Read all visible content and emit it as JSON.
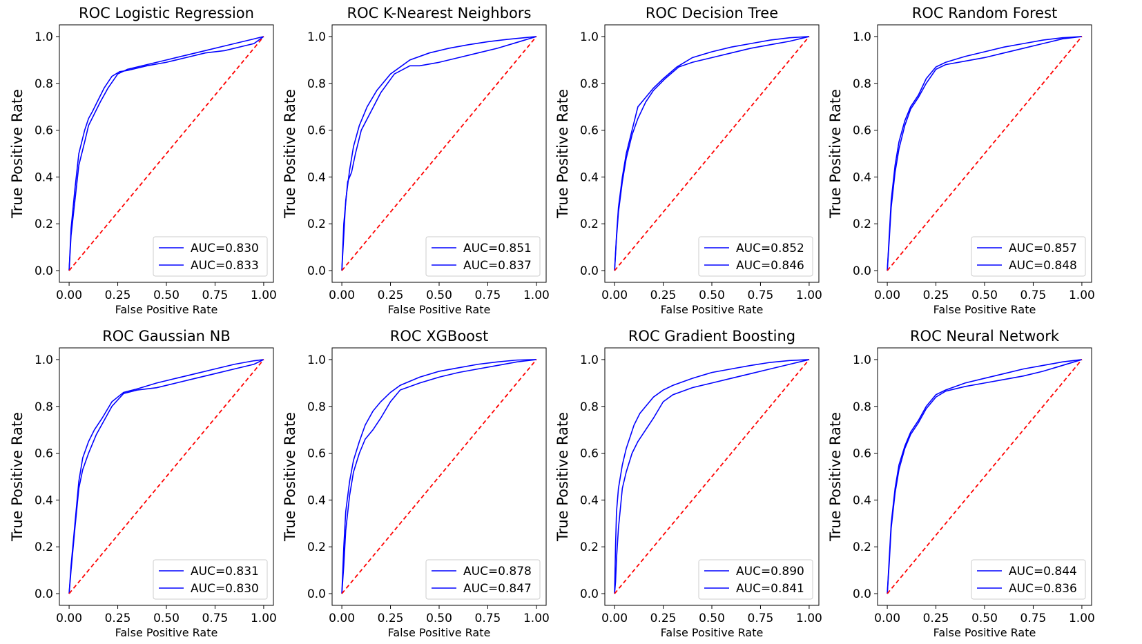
{
  "figure": {
    "x_label": "False Positive Rate",
    "y_label": "True Positive Rate",
    "x_ticks": [
      "0.00",
      "0.25",
      "0.50",
      "0.75",
      "1.00"
    ],
    "y_ticks": [
      "0.0",
      "0.2",
      "0.4",
      "0.6",
      "0.8",
      "1.0"
    ]
  },
  "chart_data": [
    {
      "type": "line",
      "title": "ROC Logistic Regression",
      "xlabel": "False Positive Rate",
      "ylabel": "True Positive Rate",
      "xlim": [
        -0.05,
        1.05
      ],
      "ylim": [
        -0.05,
        1.05
      ],
      "legend": "lower-right",
      "series": [
        {
          "name": "AUC=0.830",
          "color": "#0000ff",
          "x": [
            0,
            0.01,
            0.03,
            0.05,
            0.08,
            0.1,
            0.13,
            0.16,
            0.2,
            0.25,
            0.3,
            0.4,
            0.5,
            0.6,
            0.7,
            0.8,
            0.9,
            0.95,
            1.0
          ],
          "y": [
            0,
            0.15,
            0.3,
            0.45,
            0.55,
            0.62,
            0.67,
            0.72,
            0.78,
            0.84,
            0.86,
            0.88,
            0.9,
            0.92,
            0.94,
            0.96,
            0.98,
            0.99,
            1.0
          ]
        },
        {
          "name": "AUC=0.833",
          "color": "#0000ff",
          "x": [
            0,
            0.01,
            0.03,
            0.05,
            0.08,
            0.1,
            0.12,
            0.15,
            0.18,
            0.22,
            0.26,
            0.3,
            0.4,
            0.5,
            0.6,
            0.7,
            0.8,
            0.9,
            0.95,
            1.0
          ],
          "y": [
            0,
            0.18,
            0.35,
            0.5,
            0.6,
            0.65,
            0.68,
            0.73,
            0.78,
            0.83,
            0.85,
            0.855,
            0.875,
            0.89,
            0.91,
            0.93,
            0.94,
            0.96,
            0.97,
            1.0
          ]
        },
        {
          "name": "chance",
          "color": "#ff0000",
          "dashed": true,
          "x": [
            0,
            1
          ],
          "y": [
            0,
            1
          ]
        }
      ]
    },
    {
      "type": "line",
      "title": "ROC K-Nearest Neighbors",
      "xlabel": "False Positive Rate",
      "ylabel": "True Positive Rate",
      "xlim": [
        -0.05,
        1.05
      ],
      "ylim": [
        -0.05,
        1.05
      ],
      "legend": "lower-right",
      "series": [
        {
          "name": "AUC=0.851",
          "color": "#0000ff",
          "x": [
            0,
            0.01,
            0.02,
            0.04,
            0.06,
            0.09,
            0.13,
            0.18,
            0.25,
            0.35,
            0.45,
            0.55,
            0.65,
            0.75,
            0.85,
            0.95,
            1.0
          ],
          "y": [
            0,
            0.15,
            0.3,
            0.43,
            0.53,
            0.62,
            0.7,
            0.77,
            0.84,
            0.9,
            0.93,
            0.95,
            0.965,
            0.978,
            0.988,
            0.996,
            1.0
          ]
        },
        {
          "name": "AUC=0.837",
          "color": "#0000ff",
          "x": [
            0,
            0.01,
            0.03,
            0.05,
            0.07,
            0.1,
            0.15,
            0.2,
            0.27,
            0.35,
            0.4,
            0.5,
            0.6,
            0.7,
            0.8,
            0.9,
            1.0
          ],
          "y": [
            0,
            0.2,
            0.38,
            0.42,
            0.5,
            0.6,
            0.68,
            0.76,
            0.84,
            0.875,
            0.875,
            0.89,
            0.91,
            0.93,
            0.95,
            0.975,
            1.0
          ]
        },
        {
          "name": "chance",
          "color": "#ff0000",
          "dashed": true,
          "x": [
            0,
            1
          ],
          "y": [
            0,
            1
          ]
        }
      ]
    },
    {
      "type": "line",
      "title": "ROC Decision Tree",
      "xlabel": "False Positive Rate",
      "ylabel": "True Positive Rate",
      "xlim": [
        -0.05,
        1.05
      ],
      "ylim": [
        -0.05,
        1.05
      ],
      "legend": "lower-right",
      "series": [
        {
          "name": "AUC=0.852",
          "color": "#0000ff",
          "x": [
            0,
            0.01,
            0.02,
            0.04,
            0.06,
            0.09,
            0.12,
            0.15,
            0.2,
            0.25,
            0.32,
            0.4,
            0.5,
            0.6,
            0.7,
            0.8,
            0.9,
            1.0
          ],
          "y": [
            0,
            0.15,
            0.27,
            0.4,
            0.5,
            0.6,
            0.7,
            0.73,
            0.78,
            0.82,
            0.87,
            0.91,
            0.935,
            0.955,
            0.97,
            0.985,
            0.995,
            1.0
          ]
        },
        {
          "name": "AUC=0.846",
          "color": "#0000ff",
          "x": [
            0,
            0.01,
            0.02,
            0.04,
            0.06,
            0.09,
            0.12,
            0.16,
            0.2,
            0.26,
            0.33,
            0.4,
            0.5,
            0.6,
            0.7,
            0.8,
            0.9,
            1.0
          ],
          "y": [
            0,
            0.14,
            0.25,
            0.38,
            0.48,
            0.58,
            0.65,
            0.72,
            0.77,
            0.82,
            0.87,
            0.89,
            0.91,
            0.93,
            0.95,
            0.965,
            0.98,
            1.0
          ]
        },
        {
          "name": "chance",
          "color": "#ff0000",
          "dashed": true,
          "x": [
            0,
            1
          ],
          "y": [
            0,
            1
          ]
        }
      ]
    },
    {
      "type": "line",
      "title": "ROC Random Forest",
      "xlabel": "False Positive Rate",
      "ylabel": "True Positive Rate",
      "xlim": [
        -0.05,
        1.05
      ],
      "ylim": [
        -0.05,
        1.05
      ],
      "legend": "lower-right",
      "series": [
        {
          "name": "AUC=0.857",
          "color": "#0000ff",
          "x": [
            0,
            0.01,
            0.02,
            0.04,
            0.06,
            0.09,
            0.12,
            0.16,
            0.2,
            0.25,
            0.3,
            0.4,
            0.5,
            0.6,
            0.7,
            0.8,
            0.9,
            1.0
          ],
          "y": [
            0,
            0.15,
            0.3,
            0.45,
            0.55,
            0.64,
            0.7,
            0.75,
            0.82,
            0.87,
            0.89,
            0.915,
            0.935,
            0.955,
            0.97,
            0.985,
            0.995,
            1.0
          ]
        },
        {
          "name": "AUC=0.848",
          "color": "#0000ff",
          "x": [
            0,
            0.01,
            0.02,
            0.04,
            0.06,
            0.09,
            0.12,
            0.16,
            0.2,
            0.25,
            0.3,
            0.4,
            0.5,
            0.6,
            0.7,
            0.8,
            0.9,
            1.0
          ],
          "y": [
            0,
            0.13,
            0.27,
            0.42,
            0.52,
            0.62,
            0.69,
            0.74,
            0.8,
            0.86,
            0.88,
            0.895,
            0.91,
            0.93,
            0.95,
            0.97,
            0.99,
            1.0
          ]
        },
        {
          "name": "chance",
          "color": "#ff0000",
          "dashed": true,
          "x": [
            0,
            1
          ],
          "y": [
            0,
            1
          ]
        }
      ]
    },
    {
      "type": "line",
      "title": "ROC Gaussian NB",
      "xlabel": "False Positive Rate",
      "ylabel": "True Positive Rate",
      "xlim": [
        -0.05,
        1.05
      ],
      "ylim": [
        -0.05,
        1.05
      ],
      "legend": "lower-right",
      "series": [
        {
          "name": "AUC=0.831",
          "color": "#0000ff",
          "x": [
            0,
            0.01,
            0.03,
            0.05,
            0.07,
            0.1,
            0.13,
            0.17,
            0.22,
            0.28,
            0.35,
            0.45,
            0.55,
            0.65,
            0.75,
            0.85,
            0.95,
            1.0
          ],
          "y": [
            0,
            0.12,
            0.3,
            0.48,
            0.58,
            0.65,
            0.7,
            0.75,
            0.82,
            0.86,
            0.875,
            0.9,
            0.92,
            0.94,
            0.96,
            0.98,
            0.995,
            1.0
          ]
        },
        {
          "name": "AUC=0.830",
          "color": "#0000ff",
          "x": [
            0,
            0.01,
            0.03,
            0.05,
            0.07,
            0.1,
            0.14,
            0.18,
            0.22,
            0.28,
            0.35,
            0.45,
            0.55,
            0.65,
            0.75,
            0.85,
            0.95,
            1.0
          ],
          "y": [
            0,
            0.1,
            0.28,
            0.45,
            0.53,
            0.6,
            0.68,
            0.74,
            0.8,
            0.855,
            0.87,
            0.88,
            0.9,
            0.92,
            0.94,
            0.96,
            0.98,
            1.0
          ]
        },
        {
          "name": "chance",
          "color": "#ff0000",
          "dashed": true,
          "x": [
            0,
            1
          ],
          "y": [
            0,
            1
          ]
        }
      ]
    },
    {
      "type": "line",
      "title": "ROC XGBoost",
      "xlabel": "False Positive Rate",
      "ylabel": "True Positive Rate",
      "xlim": [
        -0.05,
        1.05
      ],
      "ylim": [
        -0.05,
        1.05
      ],
      "legend": "lower-right",
      "series": [
        {
          "name": "AUC=0.878",
          "color": "#0000ff",
          "x": [
            0,
            0.01,
            0.02,
            0.04,
            0.06,
            0.09,
            0.12,
            0.16,
            0.2,
            0.25,
            0.3,
            0.4,
            0.5,
            0.6,
            0.7,
            0.8,
            0.9,
            1.0
          ],
          "y": [
            0,
            0.2,
            0.35,
            0.48,
            0.57,
            0.65,
            0.72,
            0.78,
            0.82,
            0.86,
            0.89,
            0.925,
            0.95,
            0.965,
            0.98,
            0.99,
            0.998,
            1.0
          ]
        },
        {
          "name": "AUC=0.847",
          "color": "#0000ff",
          "x": [
            0,
            0.01,
            0.02,
            0.04,
            0.06,
            0.09,
            0.12,
            0.16,
            0.2,
            0.25,
            0.3,
            0.4,
            0.5,
            0.6,
            0.7,
            0.8,
            0.9,
            1.0
          ],
          "y": [
            0,
            0.12,
            0.27,
            0.42,
            0.52,
            0.6,
            0.66,
            0.7,
            0.75,
            0.82,
            0.87,
            0.9,
            0.925,
            0.945,
            0.96,
            0.975,
            0.99,
            1.0
          ]
        },
        {
          "name": "chance",
          "color": "#ff0000",
          "dashed": true,
          "x": [
            0,
            1
          ],
          "y": [
            0,
            1
          ]
        }
      ]
    },
    {
      "type": "line",
      "title": "ROC Gradient Boosting",
      "xlabel": "False Positive Rate",
      "ylabel": "True Positive Rate",
      "xlim": [
        -0.05,
        1.05
      ],
      "ylim": [
        -0.05,
        1.05
      ],
      "legend": "lower-right",
      "series": [
        {
          "name": "AUC=0.890",
          "color": "#0000ff",
          "x": [
            0,
            0.005,
            0.01,
            0.02,
            0.04,
            0.06,
            0.08,
            0.1,
            0.13,
            0.16,
            0.2,
            0.25,
            0.3,
            0.4,
            0.5,
            0.6,
            0.7,
            0.8,
            0.9,
            1.0
          ],
          "y": [
            0,
            0.2,
            0.35,
            0.45,
            0.55,
            0.62,
            0.67,
            0.72,
            0.77,
            0.8,
            0.84,
            0.87,
            0.89,
            0.92,
            0.945,
            0.96,
            0.975,
            0.988,
            0.996,
            1.0
          ]
        },
        {
          "name": "AUC=0.841",
          "color": "#0000ff",
          "x": [
            0,
            0.005,
            0.01,
            0.02,
            0.04,
            0.06,
            0.09,
            0.12,
            0.16,
            0.2,
            0.25,
            0.3,
            0.4,
            0.5,
            0.6,
            0.7,
            0.8,
            0.9,
            1.0
          ],
          "y": [
            0,
            0.05,
            0.15,
            0.28,
            0.45,
            0.52,
            0.6,
            0.65,
            0.7,
            0.75,
            0.82,
            0.85,
            0.88,
            0.9,
            0.92,
            0.94,
            0.96,
            0.98,
            1.0
          ]
        },
        {
          "name": "chance",
          "color": "#ff0000",
          "dashed": true,
          "x": [
            0,
            1
          ],
          "y": [
            0,
            1
          ]
        }
      ]
    },
    {
      "type": "line",
      "title": "ROC Neural Network",
      "xlabel": "False Positive Rate",
      "ylabel": "True Positive Rate",
      "xlim": [
        -0.05,
        1.05
      ],
      "ylim": [
        -0.05,
        1.05
      ],
      "legend": "lower-right",
      "series": [
        {
          "name": "AUC=0.844",
          "color": "#0000ff",
          "x": [
            0,
            0.01,
            0.02,
            0.04,
            0.06,
            0.09,
            0.12,
            0.16,
            0.2,
            0.25,
            0.3,
            0.4,
            0.5,
            0.6,
            0.7,
            0.8,
            0.9,
            1.0
          ],
          "y": [
            0,
            0.15,
            0.3,
            0.45,
            0.55,
            0.63,
            0.69,
            0.74,
            0.8,
            0.85,
            0.87,
            0.9,
            0.92,
            0.94,
            0.96,
            0.975,
            0.99,
            1.0
          ]
        },
        {
          "name": "AUC=0.836",
          "color": "#0000ff",
          "x": [
            0,
            0.01,
            0.02,
            0.04,
            0.06,
            0.09,
            0.12,
            0.16,
            0.2,
            0.25,
            0.3,
            0.4,
            0.5,
            0.6,
            0.7,
            0.8,
            0.9,
            1.0
          ],
          "y": [
            0,
            0.13,
            0.28,
            0.43,
            0.53,
            0.62,
            0.68,
            0.73,
            0.79,
            0.84,
            0.865,
            0.885,
            0.9,
            0.915,
            0.93,
            0.95,
            0.975,
            1.0
          ]
        },
        {
          "name": "chance",
          "color": "#ff0000",
          "dashed": true,
          "x": [
            0,
            1
          ],
          "y": [
            0,
            1
          ]
        }
      ]
    }
  ]
}
